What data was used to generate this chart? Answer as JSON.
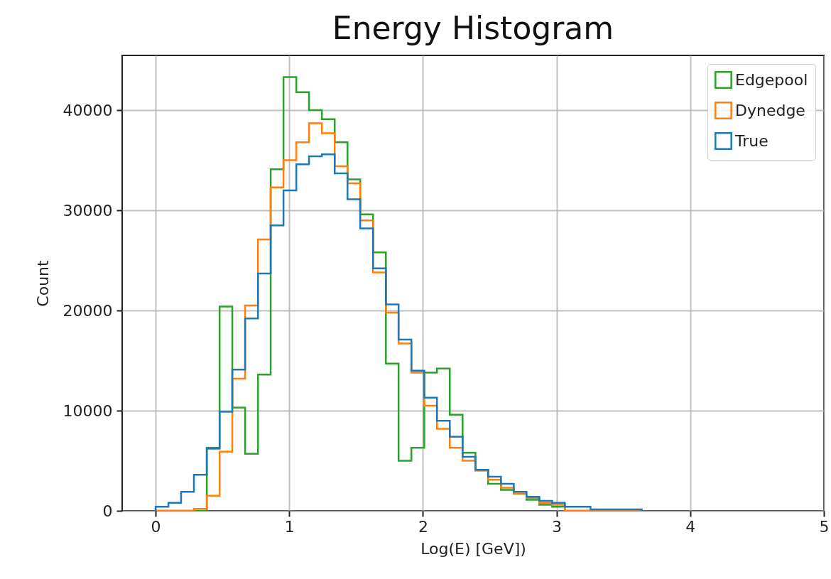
{
  "chart_data": {
    "type": "histogram",
    "title": "Energy Histogram",
    "xlabel": "Log(E) [GeV])",
    "ylabel": "Count",
    "bins": [
      0,
      0.096,
      0.191,
      0.287,
      0.383,
      0.479,
      0.574,
      0.67,
      0.766,
      0.861,
      0.957,
      1.053,
      1.148,
      1.244,
      1.34,
      1.436,
      1.531,
      1.627,
      1.723,
      1.818,
      1.914,
      2.01,
      2.105,
      2.201,
      2.297,
      2.393,
      2.488,
      2.584,
      2.68,
      2.775,
      2.871,
      2.967,
      3.062,
      3.158,
      3.254,
      3.35,
      3.445,
      3.541,
      3.637
    ],
    "series": [
      {
        "name": "Edgepool",
        "color": "#2ca02c",
        "values": [
          0,
          0,
          0,
          0,
          6300,
          20400,
          10300,
          5700,
          13600,
          34100,
          43300,
          41800,
          40000,
          39100,
          36800,
          33100,
          29600,
          25800,
          14700,
          5000,
          6300,
          13800,
          14200,
          9600,
          5800,
          4100,
          2700,
          2100,
          1700,
          1100,
          600,
          400,
          0,
          0,
          0,
          0,
          0,
          0
        ]
      },
      {
        "name": "Dynedge",
        "color": "#ff7f0e",
        "values": [
          0,
          0,
          0,
          200,
          1500,
          5900,
          13200,
          20500,
          27100,
          32300,
          35000,
          36800,
          38700,
          37700,
          34400,
          32700,
          29000,
          23800,
          19800,
          16700,
          13800,
          10500,
          8200,
          6300,
          5000,
          4000,
          3100,
          2300,
          1700,
          1300,
          800,
          600,
          0,
          0,
          0,
          0,
          0,
          0
        ]
      },
      {
        "name": "True",
        "color": "#1f77b4",
        "values": [
          400,
          800,
          1900,
          3600,
          6200,
          9900,
          14100,
          19200,
          23700,
          28500,
          32000,
          34600,
          35400,
          35600,
          33700,
          31100,
          28200,
          24200,
          20600,
          17100,
          14000,
          11300,
          9000,
          7400,
          5400,
          4100,
          3400,
          2700,
          1900,
          1400,
          1000,
          800,
          400,
          400,
          150,
          150,
          150,
          150
        ]
      }
    ],
    "xlim": [
      -0.25,
      5
    ],
    "ylim": [
      0,
      45470
    ],
    "xticks": [
      0,
      1,
      2,
      3,
      4,
      5
    ],
    "yticks": [
      0,
      10000,
      20000,
      30000,
      40000
    ],
    "grid": true,
    "legend": "top right"
  }
}
